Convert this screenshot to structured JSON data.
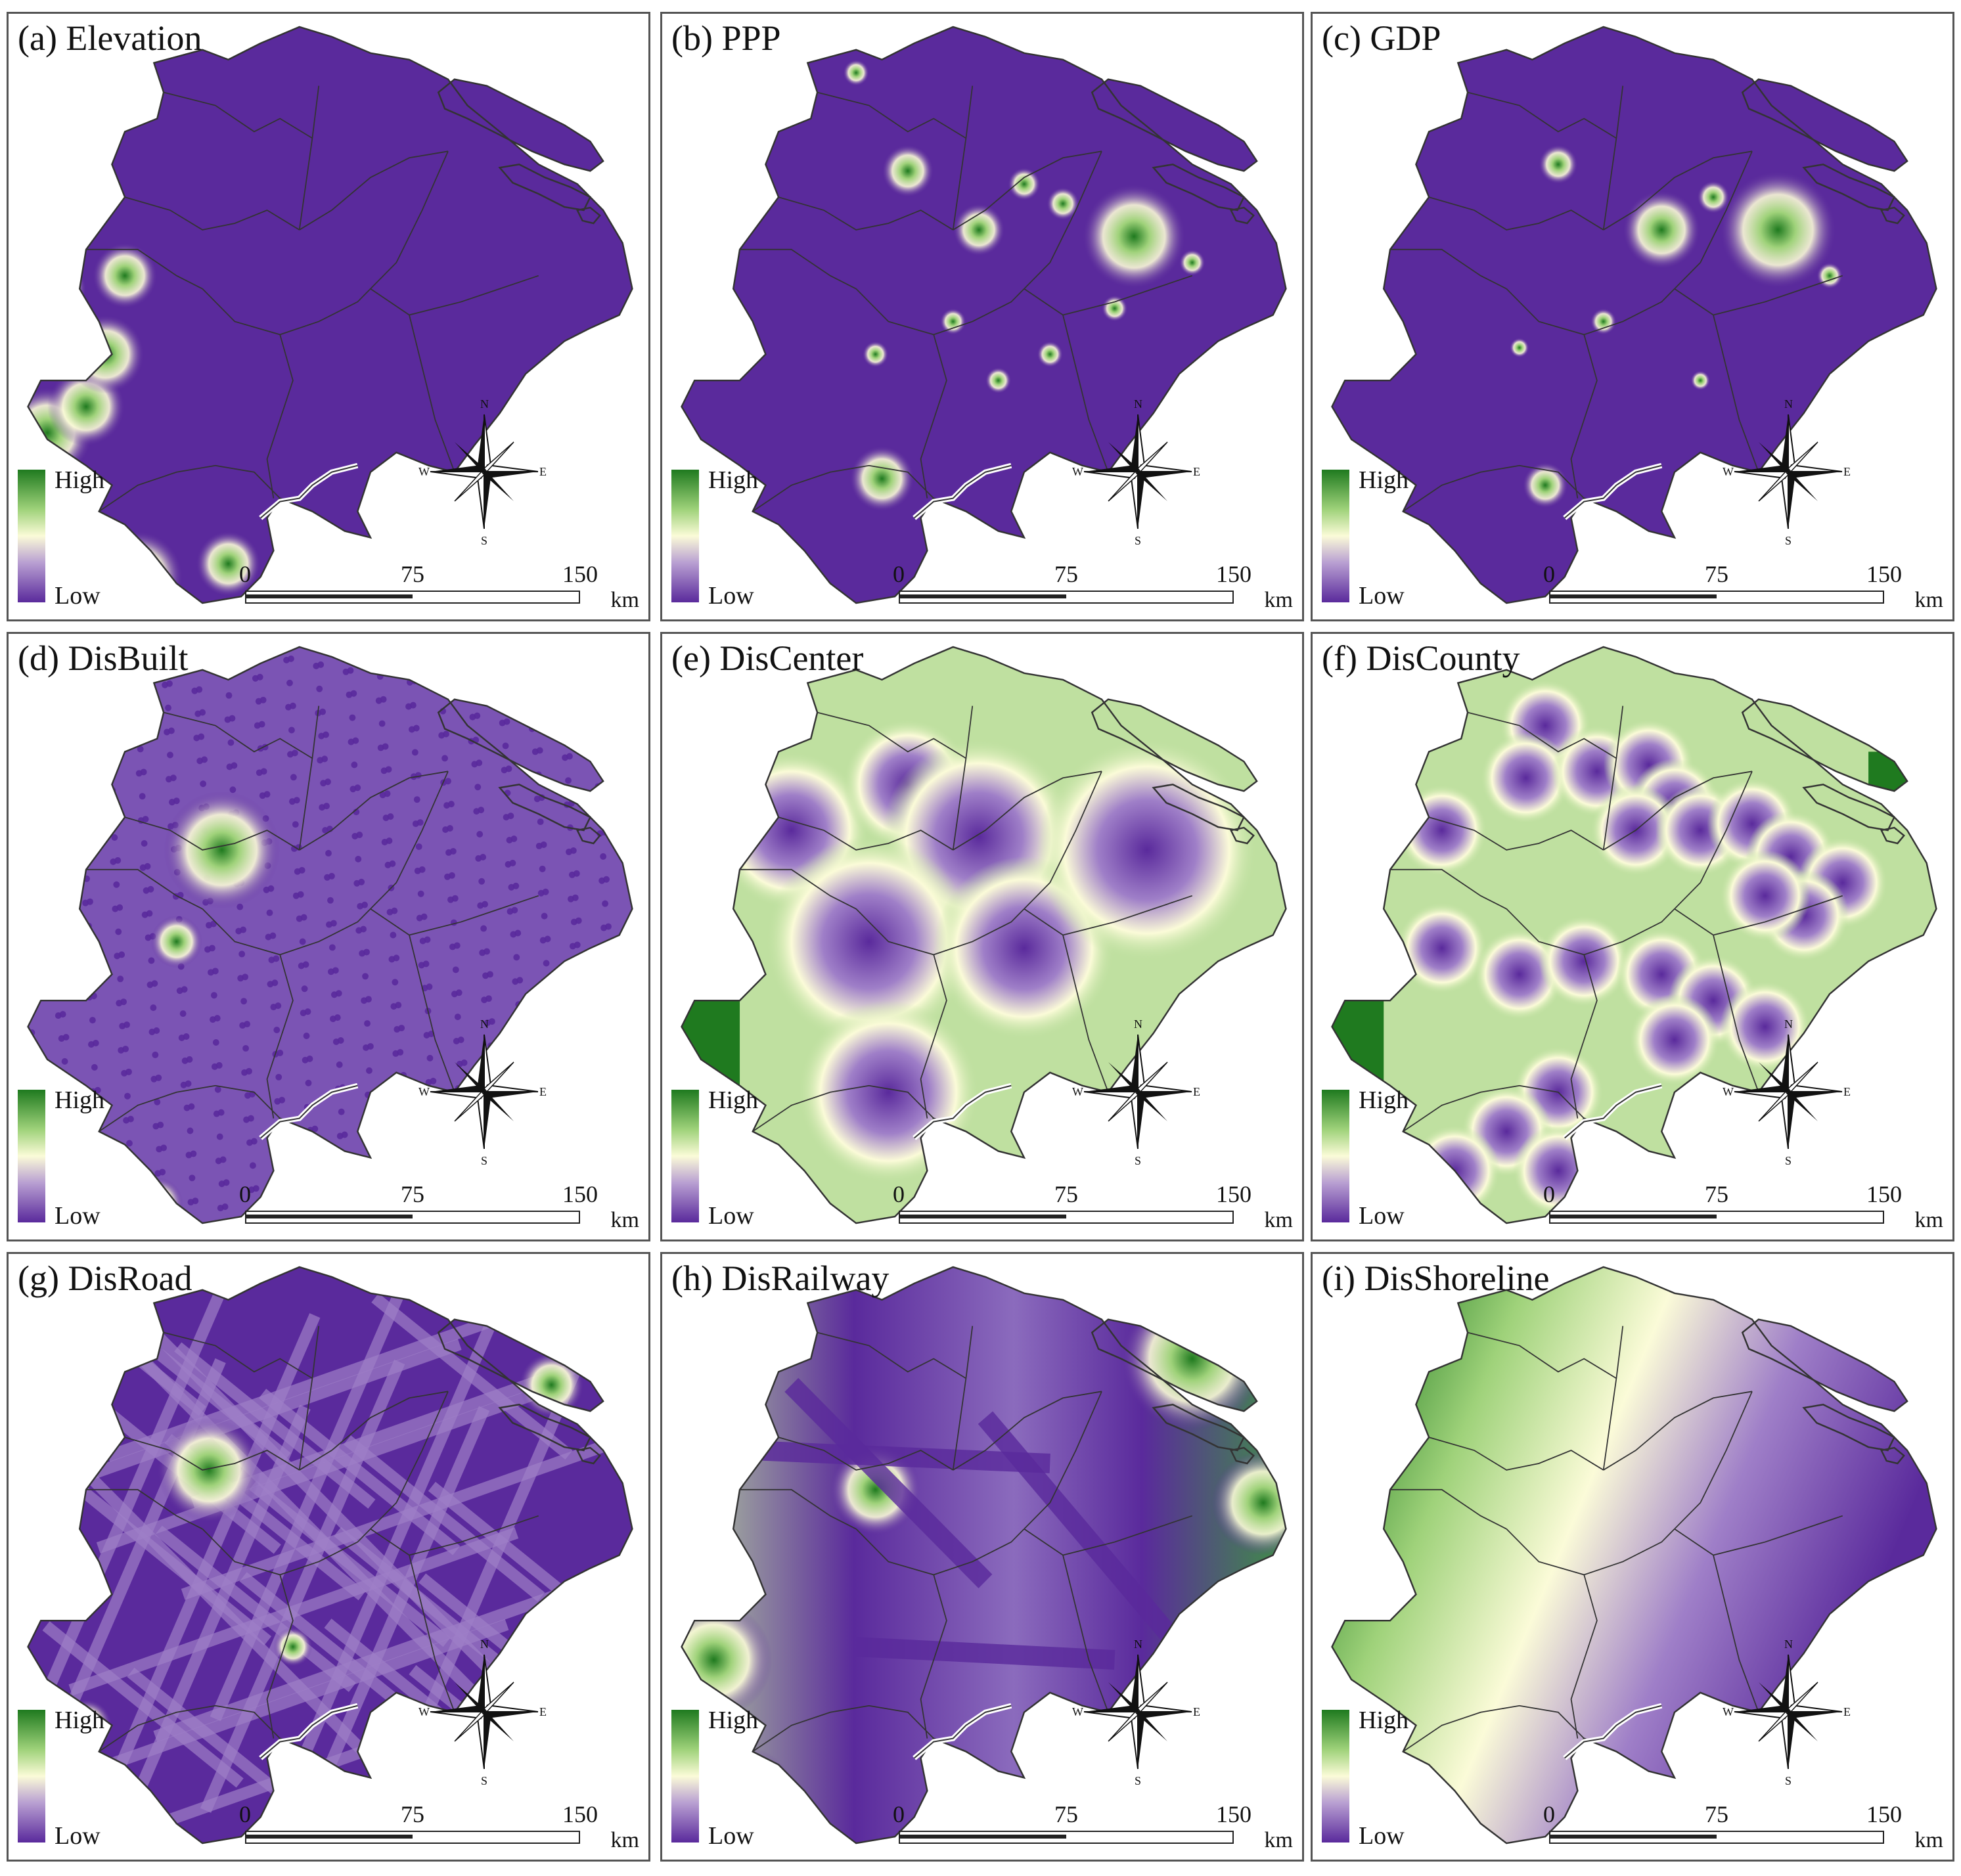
{
  "panels": [
    {
      "id": "a",
      "title": "(a) Elevation",
      "pattern": "elevation"
    },
    {
      "id": "b",
      "title": "(b) PPP",
      "pattern": "ppp"
    },
    {
      "id": "c",
      "title": "(c) GDP",
      "pattern": "gdp"
    },
    {
      "id": "d",
      "title": "(d) DisBuilt",
      "pattern": "disbuilt"
    },
    {
      "id": "e",
      "title": "(e) DisCenter",
      "pattern": "discenter"
    },
    {
      "id": "f",
      "title": "(f) DisCounty",
      "pattern": "discounty"
    },
    {
      "id": "g",
      "title": "(g) DisRoad",
      "pattern": "disroad"
    },
    {
      "id": "h",
      "title": "(h) DisRailway",
      "pattern": "disrailway"
    },
    {
      "id": "i",
      "title": "(i) DisShoreline",
      "pattern": "disshoreline"
    }
  ],
  "legend": {
    "high": "High",
    "low": "Low"
  },
  "scalebar": {
    "ticks": [
      "0",
      "75",
      "150"
    ],
    "unit": "km"
  },
  "compass": {
    "n": "N",
    "s": "S",
    "e": "E",
    "w": "W"
  },
  "colors": {
    "low": "#5a2a9c",
    "mid": "#fbfbd8",
    "high": "#1f7a1f",
    "boundary": "#333333"
  }
}
